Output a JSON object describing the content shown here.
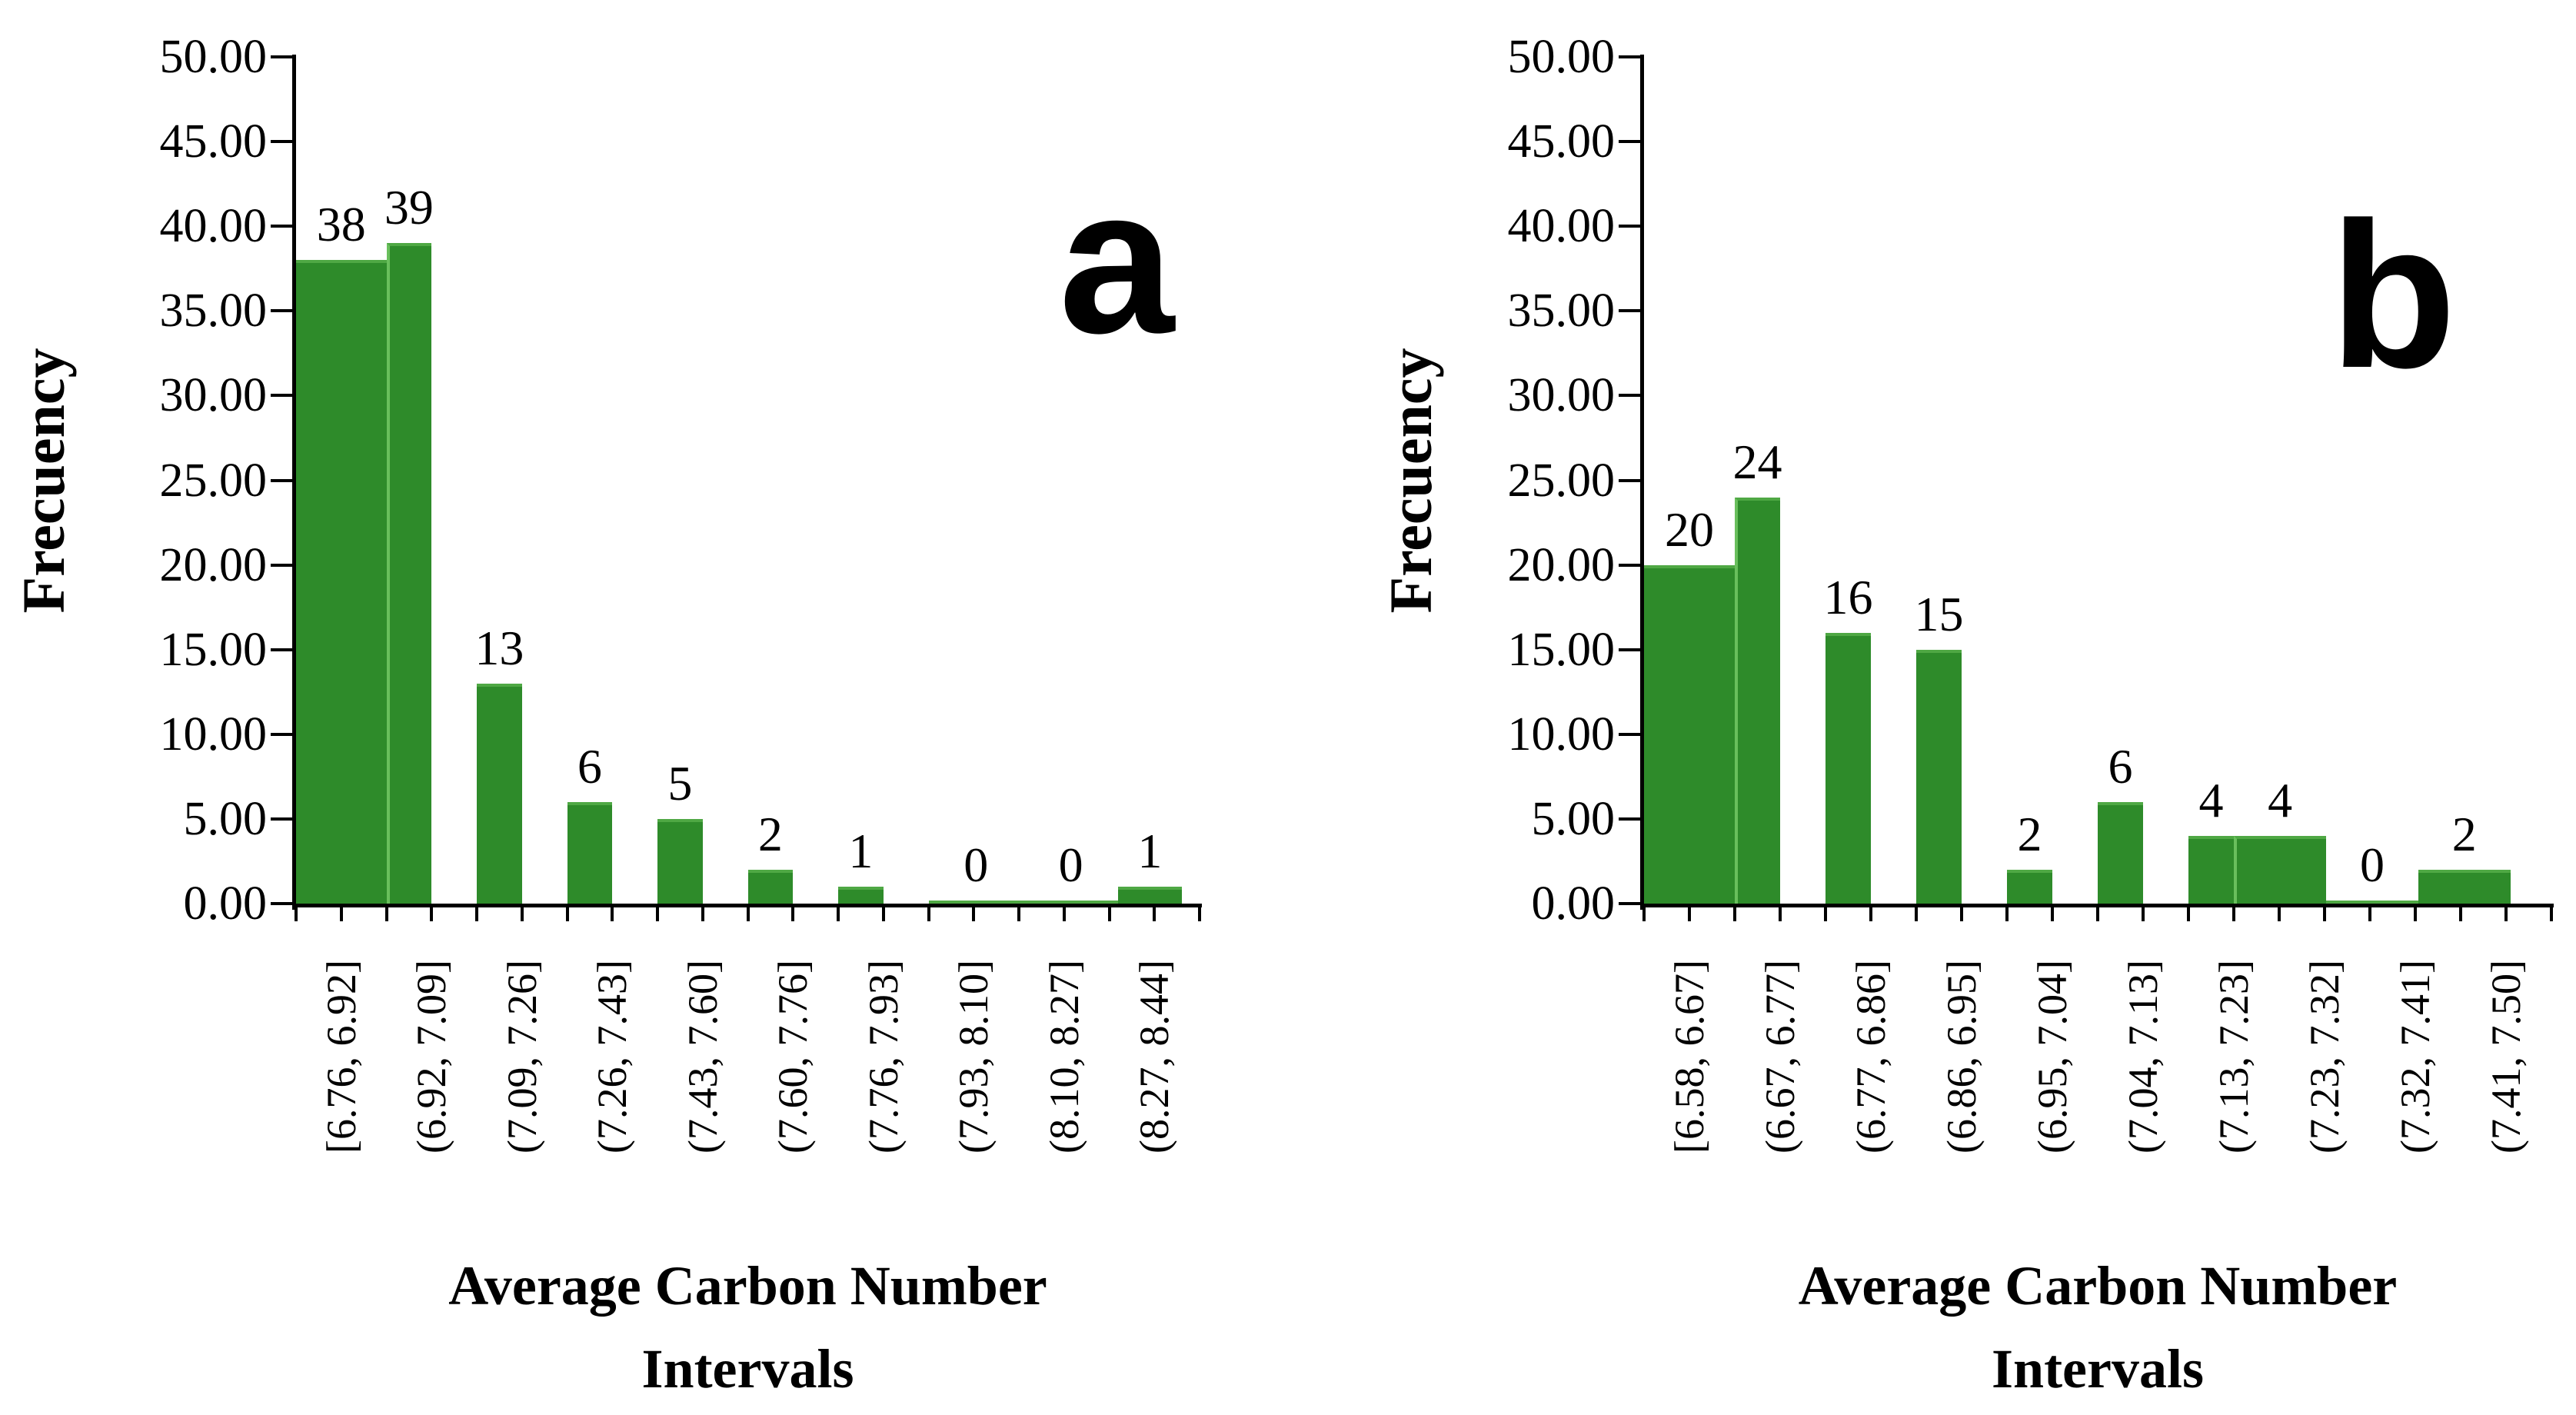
{
  "page": {
    "background": "#ffffff"
  },
  "chart_data": [
    {
      "panel_label": "a",
      "type": "bar",
      "title": "",
      "ylabel": "Frecuency",
      "xlabel_lines": [
        "Average Carbon Number",
        "Intervals"
      ],
      "ylim": [
        0,
        50
      ],
      "ytick_step": 5,
      "ytick_labels": [
        "50.00",
        "45.00",
        "40.00",
        "35.00",
        "30.00",
        "25.00",
        "20.00",
        "15.00",
        "10.00",
        "5.00",
        "0.00"
      ],
      "categories": [
        "[6.76, 6.92]",
        "(6.92, 7.09]",
        "(7.09, 7.26]",
        "(7.26, 7.43]",
        "(7.43, 7.60]",
        "(7.60, 7.76]",
        "(7.76, 7.93]",
        "(7.93, 8.10]",
        "(8.10, 8.27]",
        "(8.27, 8.44]"
      ],
      "values": [
        38,
        39,
        13,
        6,
        5,
        2,
        1,
        0,
        0,
        1
      ],
      "bar_color": "#2e8b2a",
      "bar_top_highlight": "#4fa844",
      "bar_separator_color": "#69bf5c",
      "layout": {
        "grid": false,
        "legend": false,
        "minor_ticks_per_slot": 2,
        "bar_spans": [
          [
            0,
            1
          ],
          [
            1,
            1.5
          ],
          [
            2,
            2.5
          ],
          [
            3,
            3.5
          ],
          [
            4,
            4.5
          ],
          [
            5,
            5.5
          ],
          [
            6,
            6.5
          ],
          [
            7,
            8.05
          ],
          [
            8.05,
            9.1
          ],
          [
            9.1,
            9.8
          ]
        ],
        "separator_before": [
          1
        ]
      }
    },
    {
      "panel_label": "b",
      "type": "bar",
      "title": "",
      "ylabel": "Frecuency",
      "xlabel_lines": [
        "Average Carbon Number",
        "Intervals"
      ],
      "ylim": [
        0,
        50
      ],
      "ytick_step": 5,
      "ytick_labels": [
        "50.00",
        "45.00",
        "40.00",
        "35.00",
        "30.00",
        "25.00",
        "20.00",
        "15.00",
        "10.00",
        "5.00",
        "0.00"
      ],
      "categories": [
        "[6.58, 6.67]",
        "(6.67, 6.77]",
        "(6.77, 6.86]",
        "(6.86, 6.95]",
        "(6.95, 7.04]",
        "(7.04, 7.13]",
        "(7.13, 7.23]",
        "(7.23, 7.32]",
        "(7.32, 7.41]",
        "(7.41, 7.50]"
      ],
      "values": [
        20,
        24,
        16,
        15,
        2,
        6,
        4,
        4,
        0,
        2
      ],
      "bar_color": "#2e8b2a",
      "bar_top_highlight": "#4fa844",
      "bar_separator_color": "#69bf5c",
      "layout": {
        "grid": false,
        "legend": false,
        "minor_ticks_per_slot": 2,
        "bar_spans": [
          [
            0,
            1
          ],
          [
            1,
            1.5
          ],
          [
            2,
            2.5
          ],
          [
            3,
            3.5
          ],
          [
            4,
            4.5
          ],
          [
            5,
            5.5
          ],
          [
            6,
            6.5
          ],
          [
            6.5,
            7.52
          ],
          [
            7.52,
            8.53
          ],
          [
            8.53,
            9.55
          ]
        ],
        "separator_before": [
          1,
          7
        ]
      }
    }
  ]
}
